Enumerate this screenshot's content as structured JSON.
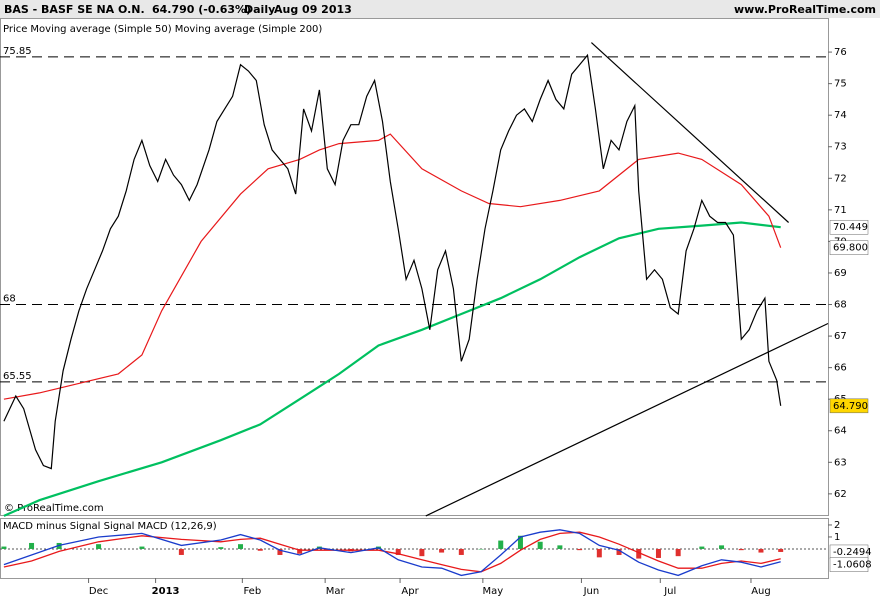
{
  "chart_data": [
    {
      "type": "line",
      "title": "BAS - BASF SE NA O.N.",
      "subtitle": "64.790 (-0.63%)",
      "interval": "Daily",
      "date": "Aug 09 2013",
      "source": "www.ProRealTime.com",
      "watermark": "© ProRealTime.com",
      "xlim": [
        -1,
        209
      ],
      "ylim": [
        61.33,
        77.08
      ],
      "yticks": [
        62,
        63,
        64,
        65,
        66,
        67,
        68,
        69,
        70,
        71,
        72,
        73,
        74,
        75,
        76
      ],
      "xticks": [
        {
          "value": 24,
          "label": "Dec"
        },
        {
          "value": 41,
          "label": "2013"
        },
        {
          "value": 63,
          "label": "Feb"
        },
        {
          "value": 84,
          "label": "Mar"
        },
        {
          "value": 103,
          "label": "Apr"
        },
        {
          "value": 124,
          "label": "May"
        },
        {
          "value": 149,
          "label": "Jun"
        },
        {
          "value": 169,
          "label": "Jul"
        },
        {
          "value": 192,
          "label": "Aug"
        }
      ],
      "hlines": [
        75.85,
        68,
        65.55
      ],
      "trendlines": [
        {
          "x": [
            149,
            199
          ],
          "values": [
            76.3,
            70.6
          ]
        },
        {
          "x": [
            107,
            209
          ],
          "values": [
            61.3,
            67.4
          ]
        }
      ],
      "series": [
        {
          "name": "Price",
          "color": "#000000",
          "last_label": "64.790",
          "x": [
            0,
            3,
            5,
            8,
            10,
            12,
            13,
            15,
            17,
            19,
            21,
            23,
            25,
            27,
            29,
            31,
            33,
            35,
            37,
            39,
            41,
            43,
            45,
            47,
            49,
            52,
            54,
            56,
            58,
            60,
            62,
            64,
            66,
            68,
            70,
            72,
            74,
            76,
            78,
            80,
            82,
            84,
            86,
            88,
            90,
            92,
            94,
            96,
            98,
            100,
            102,
            104,
            106,
            108,
            110,
            112,
            114,
            116,
            118,
            120,
            122,
            124,
            126,
            128,
            130,
            132,
            134,
            136,
            138,
            140,
            142,
            144,
            146,
            148,
            150,
            152,
            154,
            156,
            158,
            160,
            161,
            163,
            165,
            167,
            169,
            171,
            173,
            175,
            177,
            179,
            181,
            183,
            185,
            187,
            189,
            191,
            193,
            194,
            196,
            197
          ],
          "values": [
            64.3,
            65.1,
            64.7,
            63.4,
            62.9,
            62.8,
            64.3,
            65.9,
            66.9,
            67.8,
            68.5,
            69.1,
            69.7,
            70.4,
            70.8,
            71.6,
            72.6,
            73.2,
            72.4,
            71.9,
            72.6,
            72.1,
            71.8,
            71.3,
            71.8,
            72.9,
            73.8,
            74.2,
            74.6,
            75.6,
            75.4,
            75.1,
            73.7,
            72.9,
            72.6,
            72.3,
            71.5,
            74.2,
            73.5,
            74.8,
            72.3,
            71.8,
            73.2,
            73.7,
            73.7,
            74.6,
            75.1,
            73.8,
            71.9,
            70.4,
            68.8,
            69.4,
            68.5,
            67.2,
            69.1,
            69.7,
            68.5,
            66.2,
            66.9,
            68.8,
            70.4,
            71.6,
            72.9,
            73.5,
            74.0,
            74.2,
            73.8,
            74.5,
            75.1,
            74.5,
            74.2,
            75.3,
            75.6,
            75.9,
            74.2,
            72.3,
            73.2,
            72.9,
            73.8,
            74.3,
            71.6,
            68.8,
            69.1,
            68.8,
            67.9,
            67.7,
            69.7,
            70.4,
            71.3,
            70.8,
            70.6,
            70.6,
            70.2,
            66.9,
            67.2,
            67.8,
            68.2,
            66.2,
            65.6,
            64.79
          ]
        },
        {
          "name": "Moving average (Simple 50)",
          "color": "#e8191b",
          "last_label": "69.800",
          "x": [
            0,
            9,
            19,
            29,
            35,
            40,
            50,
            60,
            67,
            75,
            80,
            85,
            95,
            98,
            106,
            116,
            123,
            131,
            141,
            151,
            161,
            171,
            177,
            187,
            194,
            197
          ],
          "values": [
            65.0,
            65.2,
            65.5,
            65.8,
            66.4,
            67.8,
            70.0,
            71.5,
            72.3,
            72.6,
            72.9,
            73.1,
            73.2,
            73.4,
            72.3,
            71.6,
            71.2,
            71.1,
            71.3,
            71.6,
            72.6,
            72.8,
            72.6,
            71.8,
            70.8,
            69.8
          ]
        },
        {
          "name": "Moving average (Simple 200)",
          "color": "#00c060",
          "last_label": "70.449",
          "x": [
            0,
            9,
            24,
            40,
            55,
            65,
            75,
            85,
            95,
            106,
            116,
            126,
            136,
            146,
            156,
            166,
            177,
            187,
            197
          ],
          "values": [
            61.3,
            61.8,
            62.4,
            63.0,
            63.7,
            64.2,
            65.0,
            65.8,
            66.7,
            67.2,
            67.7,
            68.2,
            68.8,
            69.5,
            70.1,
            70.4,
            70.5,
            70.6,
            70.449
          ]
        }
      ]
    },
    {
      "type": "macd",
      "title": "MACD minus Signal Signal MACD (12,26,9)",
      "xlim": [
        -1,
        209
      ],
      "ylim": [
        -2.42,
        2.58
      ],
      "yticks": [
        2,
        1
      ],
      "x": [
        0,
        7,
        14,
        24,
        35,
        45,
        55,
        60,
        65,
        70,
        75,
        80,
        88,
        95,
        100,
        106,
        111,
        116,
        121,
        126,
        131,
        136,
        141,
        146,
        151,
        156,
        161,
        166,
        171,
        177,
        182,
        187,
        192,
        197
      ],
      "histogram": {
        "up_color": "#22b04a",
        "down_color": "#e0302e",
        "last_label": "-0.2494",
        "values": [
          0.2,
          0.5,
          0.5,
          0.4,
          0.2,
          -0.5,
          0.15,
          0.4,
          -0.15,
          -0.5,
          -0.4,
          0.2,
          -0.2,
          0.2,
          -0.5,
          -0.6,
          -0.3,
          -0.5,
          0,
          0.7,
          1.1,
          0.6,
          0.3,
          -0.1,
          -0.7,
          -0.5,
          -0.8,
          -0.75,
          -0.6,
          0.2,
          0.3,
          -0.1,
          -0.3,
          -0.2494
        ]
      },
      "macd": {
        "color": "#1a3ccc",
        "last_label": "-1.0608",
        "values": [
          -1.3,
          -0.5,
          0.3,
          1.0,
          1.3,
          0.3,
          0.75,
          1.2,
          0.75,
          -0.1,
          -0.5,
          0.1,
          -0.3,
          0.1,
          -0.9,
          -1.5,
          -1.6,
          -2.2,
          -1.9,
          -0.5,
          1.0,
          1.4,
          1.6,
          1.3,
          0.3,
          -0.1,
          -1.1,
          -1.75,
          -2.2,
          -1.4,
          -0.9,
          -1.1,
          -1.5,
          -1.0608
        ]
      },
      "signal": {
        "color": "#e8191b",
        "values": [
          -1.5,
          -1.0,
          -0.2,
          0.6,
          1.1,
          0.8,
          0.6,
          0.8,
          0.9,
          0.4,
          -0.1,
          -0.1,
          -0.1,
          -0.1,
          -0.4,
          -0.9,
          -1.3,
          -1.7,
          -1.9,
          -1.2,
          -0.1,
          0.8,
          1.3,
          1.4,
          1.0,
          0.4,
          -0.3,
          -1.0,
          -1.6,
          -1.6,
          -1.2,
          -1.0,
          -1.2,
          -0.81
        ]
      }
    }
  ]
}
